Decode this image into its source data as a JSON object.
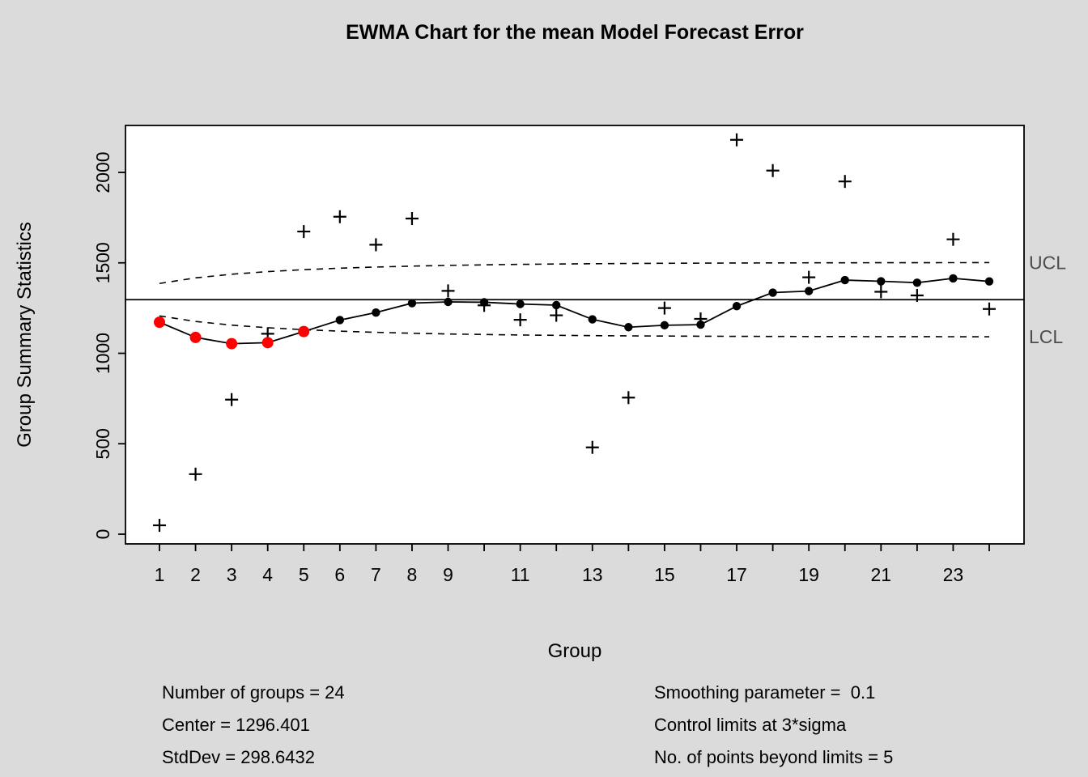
{
  "title": "EWMA Chart for the mean Model Forecast Error",
  "chart_data": {
    "type": "line",
    "title": "EWMA Chart for the mean Model Forecast Error",
    "xlabel": "Group",
    "ylabel": "Group Summary Statistics",
    "xlim": [
      1,
      24
    ],
    "ylim": [
      0,
      2260
    ],
    "yticks": [
      0,
      500,
      1000,
      1500,
      2000
    ],
    "grid": false,
    "center": 1296.401,
    "stddev": 298.6432,
    "smoothing_lambda": 0.1,
    "nsigmas": 3,
    "groups": [
      1,
      2,
      3,
      4,
      5,
      6,
      7,
      8,
      9,
      10,
      11,
      12,
      13,
      14,
      15,
      16,
      17,
      18,
      19,
      20,
      21,
      22,
      23,
      24
    ],
    "xtick_labels": [
      "1",
      "2",
      "3",
      "4",
      "5",
      "6",
      "7",
      "8",
      "9",
      "",
      "11",
      "",
      "13",
      "",
      "15",
      "",
      "17",
      "",
      "19",
      "",
      "21",
      "",
      "23",
      ""
    ],
    "series": [
      {
        "name": "summary",
        "marker": "plus",
        "values": [
          49,
          332,
          744,
          1108,
          1673,
          1755,
          1600,
          1745,
          1345,
          1265,
          1185,
          1210,
          480,
          755,
          1250,
          1190,
          2180,
          2010,
          1420,
          1950,
          1340,
          1320,
          1630,
          1245
        ]
      },
      {
        "name": "ewma",
        "marker": "dot-line",
        "values": [
          1171.7,
          1087.7,
          1053.3,
          1058.8,
          1120.2,
          1183.7,
          1225.3,
          1277.3,
          1284.1,
          1282.2,
          1272.4,
          1266.2,
          1187.6,
          1144.3,
          1154.9,
          1158.4,
          1260.6,
          1335.5,
          1344.0,
          1404.6,
          1398.1,
          1390.3,
          1414.3,
          1397.3
        ]
      }
    ],
    "ucl": [
      1386.0,
      1416.9,
      1437.1,
      1451.5,
      1462.3,
      1470.5,
      1476.9,
      1481.9,
      1485.9,
      1489.0,
      1491.6,
      1493.6,
      1495.2,
      1496.5,
      1497.5,
      1498.4,
      1499.1,
      1499.6,
      1500.1,
      1500.4,
      1500.7,
      1501.0,
      1501.1,
      1501.3
    ],
    "lcl": [
      1206.8,
      1175.9,
      1155.7,
      1141.3,
      1130.5,
      1122.3,
      1115.9,
      1110.9,
      1106.9,
      1103.8,
      1101.2,
      1099.2,
      1097.6,
      1096.3,
      1095.3,
      1094.4,
      1093.7,
      1093.2,
      1092.7,
      1092.4,
      1092.1,
      1091.9,
      1091.7,
      1091.5
    ],
    "beyond_groups": [
      1,
      2,
      3,
      4,
      5
    ],
    "ucl_label": "UCL",
    "lcl_label": "LCL",
    "colors": {
      "background": "#dbdbdb",
      "plot_background": "#ffffff",
      "line": "#000000",
      "beyond_point": "#ff0000",
      "limit_label": "#4d4d4d"
    }
  },
  "stats": {
    "number_of_groups": "Number of groups = 24",
    "center": "Center = 1296.401",
    "stddev": "StdDev = 298.6432",
    "smoothing": "Smoothing parameter =  0.1",
    "limits": "Control limits at 3*sigma",
    "beyond": "No. of points beyond limits = 5"
  }
}
